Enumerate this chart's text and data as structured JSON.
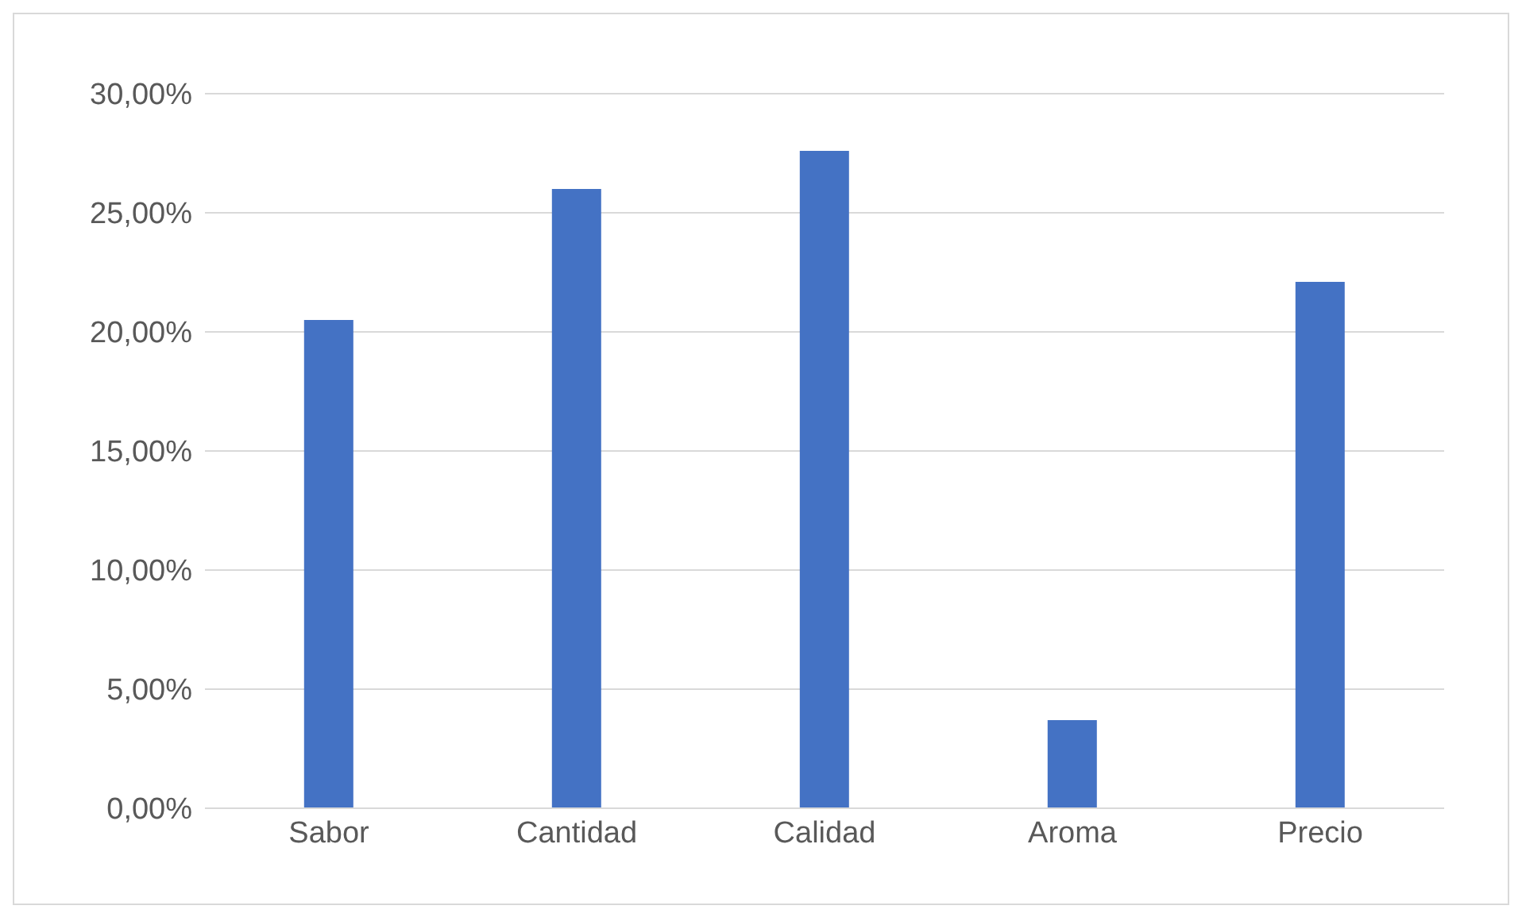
{
  "chart_data": {
    "type": "bar",
    "categories": [
      "Sabor",
      "Cantidad",
      "Calidad",
      "Aroma",
      "Precio"
    ],
    "values": [
      20.5,
      26,
      27.6,
      3.7,
      22.1
    ],
    "color": "#4472c4",
    "ylim": [
      0,
      30
    ],
    "yticks": [
      {
        "value": 0,
        "label": "0,00%"
      },
      {
        "value": 5,
        "label": "5,00%"
      },
      {
        "value": 10,
        "label": "10,00%"
      },
      {
        "value": 15,
        "label": "15,00%"
      },
      {
        "value": 20,
        "label": "20,00%"
      },
      {
        "value": 25,
        "label": "25,00%"
      },
      {
        "value": 30,
        "label": "30,00%"
      }
    ],
    "grid": "y",
    "legend": false
  }
}
